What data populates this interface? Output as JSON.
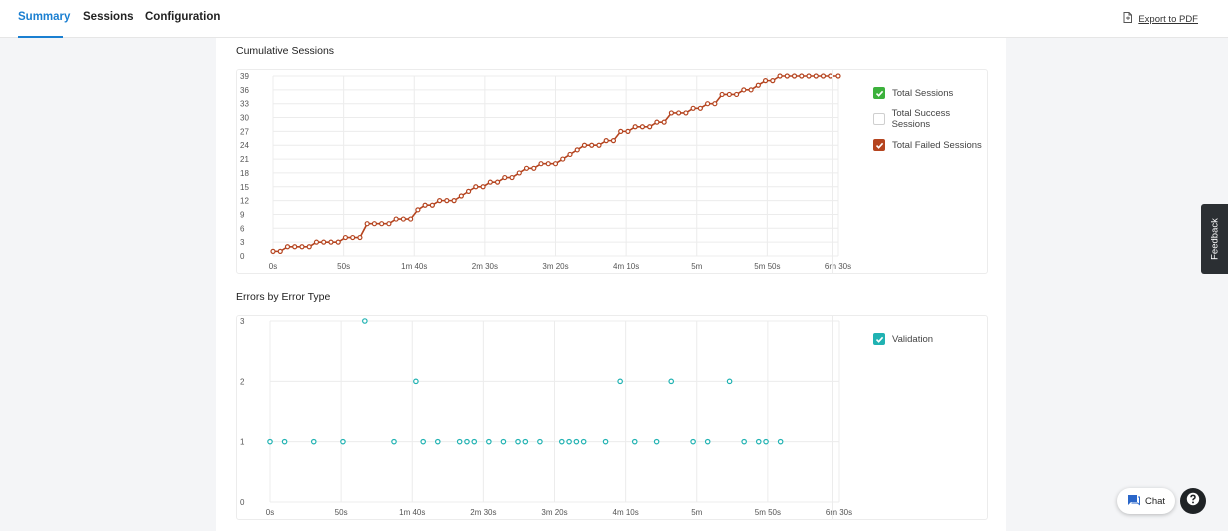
{
  "tabs": [
    {
      "label": "Summary",
      "active": true
    },
    {
      "label": "Sessions",
      "active": false
    },
    {
      "label": "Configuration",
      "active": false
    }
  ],
  "export_label": "Export to PDF",
  "feedback_label": "Feedback",
  "chat_label": "Chat",
  "colors": {
    "accent": "#1a7fd1",
    "sessions_line": "#b5441f",
    "validation": "#20b2b2",
    "total_sessions_check": "#3cb13c"
  },
  "chart_data": [
    {
      "type": "line",
      "title": "Cumulative Sessions",
      "xlabel": "",
      "ylabel": "",
      "x_ticks": [
        "0s",
        "50s",
        "1m 40s",
        "2m 30s",
        "3m 20s",
        "4m 10s",
        "5m",
        "5m 50s",
        "6m 30s"
      ],
      "y_ticks": [
        "0",
        "3",
        "6",
        "9",
        "12",
        "15",
        "18",
        "21",
        "24",
        "27",
        "30",
        "33",
        "36",
        "39"
      ],
      "xlim": [
        0,
        390
      ],
      "ylim": [
        0,
        39
      ],
      "grid": true,
      "legend_position": "right",
      "legend": [
        {
          "name": "Total Sessions",
          "checked": true,
          "color": "#3cb13c"
        },
        {
          "name": "Total Success Sessions",
          "checked": false,
          "color": "#ffffff"
        },
        {
          "name": "Total Failed Sessions",
          "checked": true,
          "color": "#b5441f"
        }
      ],
      "series": [
        {
          "name": "Total Failed Sessions",
          "values": [
            1,
            1,
            2,
            2,
            2,
            2,
            3,
            3,
            3,
            3,
            4,
            4,
            4,
            7,
            7,
            7,
            7,
            8,
            8,
            8,
            10,
            11,
            11,
            12,
            12,
            12,
            13,
            14,
            15,
            15,
            16,
            16,
            17,
            17,
            18,
            19,
            19,
            20,
            20,
            20,
            21,
            22,
            23,
            24,
            24,
            24,
            25,
            25,
            27,
            27,
            28,
            28,
            28,
            29,
            29,
            31,
            31,
            31,
            32,
            32,
            33,
            33,
            35,
            35,
            35,
            36,
            36,
            37,
            38,
            38,
            39,
            39,
            39,
            39,
            39,
            39,
            39,
            39,
            39
          ]
        }
      ]
    },
    {
      "type": "scatter",
      "title": "Errors by Error Type",
      "xlabel": "",
      "ylabel": "",
      "x_ticks": [
        "0s",
        "50s",
        "1m 40s",
        "2m 30s",
        "3m 20s",
        "4m 10s",
        "5m",
        "5m 50s",
        "6m 30s"
      ],
      "y_ticks": [
        "0",
        "1",
        "2",
        "3"
      ],
      "xlim": [
        0,
        390
      ],
      "ylim": [
        0,
        3
      ],
      "grid": true,
      "legend_position": "right",
      "legend": [
        {
          "name": "Validation",
          "checked": true,
          "color": "#20b2b2"
        }
      ],
      "series": [
        {
          "name": "Validation",
          "x": [
            0,
            10,
            30,
            50,
            65,
            85,
            100,
            105,
            115,
            130,
            135,
            140,
            150,
            160,
            170,
            175,
            185,
            200,
            205,
            210,
            215,
            230,
            240,
            250,
            265,
            275,
            290,
            300,
            315,
            325,
            335,
            340,
            350
          ],
          "y": [
            1,
            1,
            1,
            1,
            3,
            1,
            2,
            1,
            1,
            1,
            1,
            1,
            1,
            1,
            1,
            1,
            1,
            1,
            1,
            1,
            1,
            1,
            2,
            1,
            1,
            2,
            1,
            1,
            2,
            1,
            1,
            1,
            1
          ]
        }
      ]
    }
  ]
}
